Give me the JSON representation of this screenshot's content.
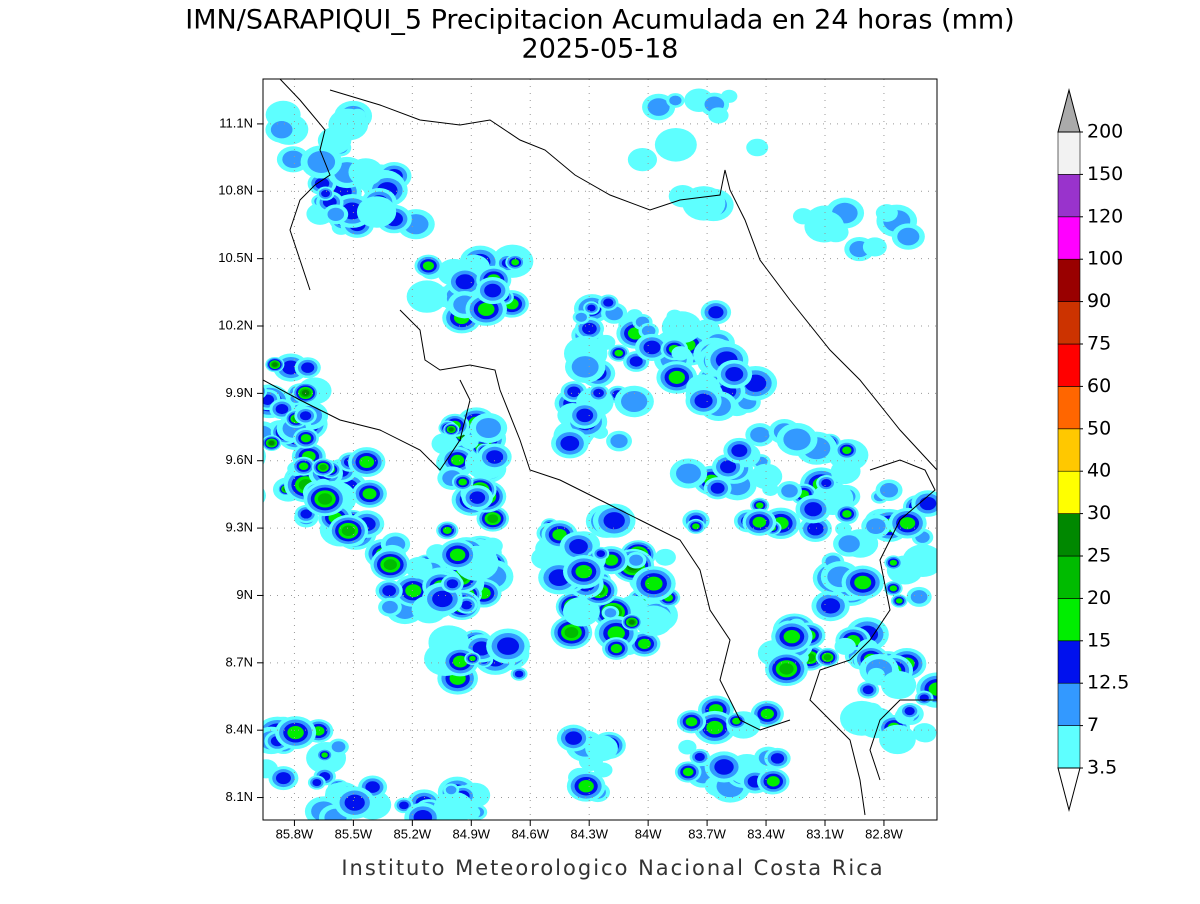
{
  "chart_data": {
    "type": "contour-map",
    "title": "IMN/SARAPIQUI_5 Precipitacion Acumulada en 24 horas (mm)",
    "subtitle": "2025-05-18",
    "footer": "Instituto Meteorologico Nacional Costa Rica",
    "xlim": [
      -85.96,
      -82.53
    ],
    "ylim": [
      8.0,
      11.3
    ],
    "xticks": [
      {
        "value": -85.8,
        "label": "85.8W"
      },
      {
        "value": -85.5,
        "label": "85.5W"
      },
      {
        "value": -85.2,
        "label": "85.2W"
      },
      {
        "value": -84.9,
        "label": "84.9W"
      },
      {
        "value": -84.6,
        "label": "84.6W"
      },
      {
        "value": -84.3,
        "label": "84.3W"
      },
      {
        "value": -84.0,
        "label": "84W"
      },
      {
        "value": -83.7,
        "label": "83.7W"
      },
      {
        "value": -83.4,
        "label": "83.4W"
      },
      {
        "value": -83.1,
        "label": "83.1W"
      },
      {
        "value": -82.8,
        "label": "82.8W"
      }
    ],
    "yticks": [
      {
        "value": 8.1,
        "label": "8.1N"
      },
      {
        "value": 8.4,
        "label": "8.4N"
      },
      {
        "value": 8.7,
        "label": "8.7N"
      },
      {
        "value": 9.0,
        "label": "9N"
      },
      {
        "value": 9.3,
        "label": "9.3N"
      },
      {
        "value": 9.6,
        "label": "9.6N"
      },
      {
        "value": 9.9,
        "label": "9.9N"
      },
      {
        "value": 10.2,
        "label": "10.2N"
      },
      {
        "value": 10.5,
        "label": "10.5N"
      },
      {
        "value": 10.8,
        "label": "10.8N"
      },
      {
        "value": 11.1,
        "label": "11.1N"
      }
    ],
    "grid": true,
    "colorbar": {
      "levels": [
        3.5,
        7,
        12.5,
        15,
        20,
        25,
        30,
        40,
        50,
        60,
        75,
        90,
        100,
        120,
        150,
        200
      ],
      "colors": [
        "#5effff",
        "#3399ff",
        "#0011ee",
        "#00ee00",
        "#00bb00",
        "#008800",
        "#ffff00",
        "#ffc800",
        "#ff6600",
        "#ff0000",
        "#cc3300",
        "#990000",
        "#ff00ff",
        "#9933cc",
        "#f2f2f2"
      ],
      "under_color": "#ffffff",
      "over_color": "#aaaaaa"
    }
  }
}
